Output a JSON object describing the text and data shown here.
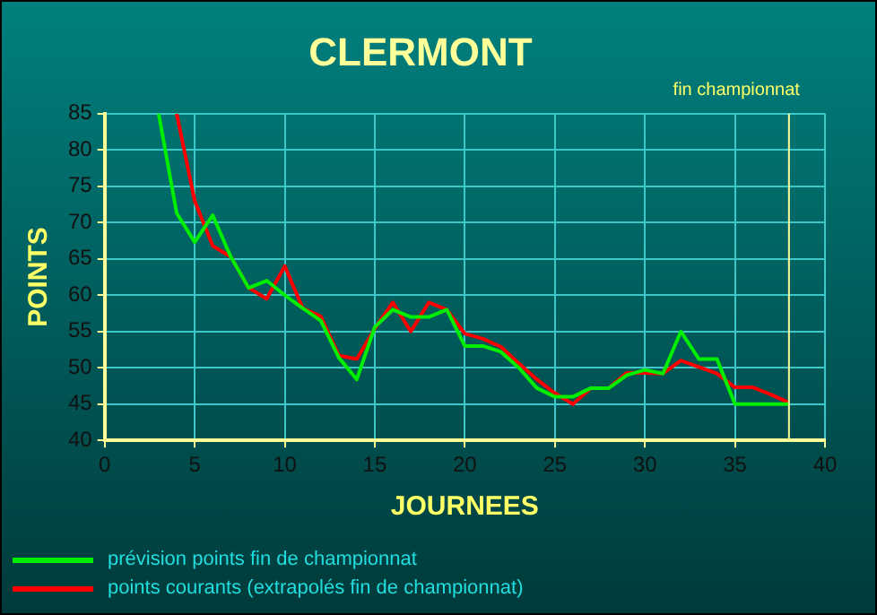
{
  "chart_data": {
    "type": "line",
    "title": "CLERMONT",
    "xlabel": "JOURNEES",
    "ylabel": "POINTS",
    "x": [
      3,
      4,
      5,
      6,
      7,
      8,
      9,
      10,
      11,
      12,
      13,
      14,
      15,
      16,
      17,
      18,
      19,
      20,
      21,
      22,
      23,
      24,
      25,
      26,
      27,
      28,
      29,
      30,
      31,
      32,
      33,
      34,
      35,
      36,
      37,
      38
    ],
    "series": [
      {
        "name": "prévision points fin de championnat",
        "color": "#00ee00",
        "values": [
          85,
          71.3,
          67.3,
          71,
          65.3,
          61,
          62,
          60,
          58.2,
          56.5,
          51.4,
          48.4,
          55.6,
          58,
          57,
          57,
          58,
          53,
          53,
          52.2,
          50,
          47.2,
          46,
          46,
          47.2,
          47.2,
          49,
          49.7,
          49.2,
          55,
          51.2,
          51.2,
          45,
          45,
          45,
          45
        ]
      },
      {
        "name": "points courants (extrapolés fin de championnat)",
        "color": "#ff0000",
        "values": [
          null,
          85,
          73,
          66.8,
          65.3,
          61,
          59.5,
          64,
          58.2,
          57.1,
          51.7,
          51.2,
          55.4,
          59,
          55,
          59,
          58,
          54.7,
          54,
          52.9,
          50.6,
          48.4,
          46.5,
          45,
          47.2,
          47.2,
          49.3,
          49.3,
          49.2,
          51,
          50.1,
          49.2,
          47.3,
          47.3,
          46.3,
          45.2
        ]
      }
    ],
    "xlim": [
      0,
      40
    ],
    "xticks": [
      0,
      5,
      10,
      15,
      20,
      25,
      30,
      35,
      40
    ],
    "ylim": [
      40,
      85
    ],
    "yticks": [
      40,
      45,
      50,
      55,
      60,
      65,
      70,
      75,
      80,
      85
    ],
    "grid": true,
    "legend": "bottom left",
    "marker": "none",
    "line_style": "solid",
    "ref_lines": [
      {
        "axis": "x",
        "value": 38,
        "label": "fin championnat",
        "color": "#ffff99"
      }
    ]
  }
}
